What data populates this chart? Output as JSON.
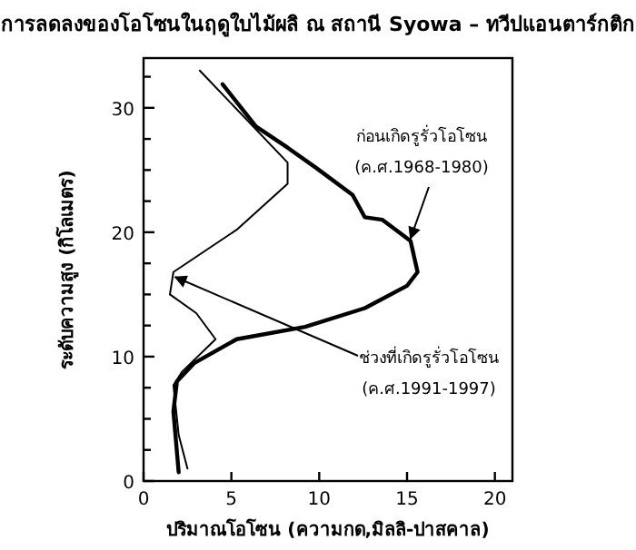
{
  "chart_data": {
    "type": "line",
    "title": "การลดลงของโอโซนในฤดูใบไม้ผลิ ณ สถานี Syowa – ทวีปแอนตาร์กติก",
    "xlabel": "ปริมาณโอโซน (ความกด,มิลลิ-ปาสคาล)",
    "ylabel": "ระดับความสูง (กิโลเมตร)",
    "series": [
      {
        "color": "#000000",
        "x": [
          2.0,
          1.7,
          1.9,
          2.9,
          5.3,
          9.2,
          12.6,
          15.0,
          15.6,
          15.2,
          13.6,
          12.6,
          11.9,
          9.8,
          8.2,
          6.4,
          4.5
        ],
        "values": [
          0.7,
          5.6,
          8.0,
          9.5,
          11.4,
          12.4,
          13.9,
          15.7,
          16.8,
          19.3,
          21.0,
          21.2,
          23.0,
          25.2,
          26.8,
          28.5,
          31.9
        ]
      },
      {
        "color": "#000000",
        "x": [
          2.5,
          2.0,
          1.7,
          2.2,
          4.1,
          3.0,
          1.5,
          1.7,
          5.3,
          8.2,
          8.2,
          3.2
        ],
        "values": [
          1.0,
          3.7,
          7.7,
          8.8,
          11.4,
          13.5,
          15.0,
          16.8,
          20.2,
          23.9,
          25.6,
          33.0
        ]
      }
    ],
    "annotations": [
      {
        "text": "ก่อนเกิดรูรั่วโอโซน\n(ค.ศ.1968-1980)",
        "x": 15.2,
        "y": 19.5
      },
      {
        "text": "ช่วงที่เกิดรูรั่วโอโซน\n(ค.ศ.1991-1997)",
        "x": 1.8,
        "y": 16.4
      }
    ],
    "xlim": [
      0,
      21
    ],
    "ylim": [
      0,
      34
    ],
    "xticks": [
      0,
      5,
      10,
      15,
      20
    ],
    "yticks": [
      0,
      {
        "value": 2.5,
        "label": null
      },
      {
        "value": 5,
        "label": null
      },
      {
        "value": 7.5,
        "label": null
      },
      10,
      {
        "value": 12.5,
        "label": null
      },
      {
        "value": 15,
        "label": null
      },
      {
        "value": 17.5,
        "label": null
      },
      20,
      {
        "value": 22.5,
        "label": null
      },
      {
        "value": 25,
        "label": null
      },
      {
        "value": 27.5,
        "label": null
      },
      30,
      {
        "value": 32.5,
        "label": null
      }
    ],
    "marker": "none",
    "line_style": "solid",
    "grid": false
  }
}
